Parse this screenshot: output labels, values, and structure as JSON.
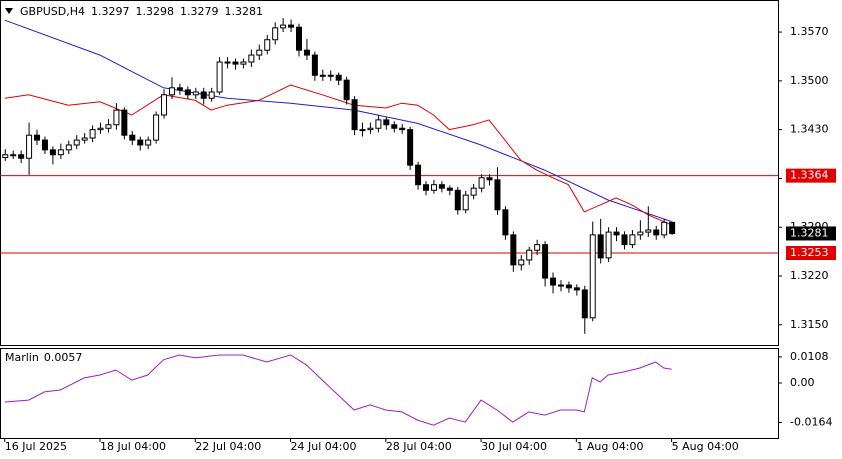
{
  "chart_data": {
    "type": "candlestick",
    "symbol": "GBPUSD,H4",
    "ohlc": [
      [
        1.339,
        1.3402,
        1.3385,
        1.3394
      ],
      [
        1.3394,
        1.34,
        1.3388,
        1.3394
      ],
      [
        1.3394,
        1.34,
        1.3382,
        1.3389
      ],
      [
        1.3389,
        1.344,
        1.3365,
        1.3422
      ],
      [
        1.3422,
        1.343,
        1.3408,
        1.3415
      ],
      [
        1.3415,
        1.342,
        1.3395,
        1.3401
      ],
      [
        1.3401,
        1.3406,
        1.338,
        1.3394
      ],
      [
        1.3394,
        1.341,
        1.3388,
        1.3401
      ],
      [
        1.3401,
        1.3414,
        1.3395,
        1.3408
      ],
      [
        1.3408,
        1.3422,
        1.3402,
        1.3415
      ],
      [
        1.3415,
        1.3425,
        1.341,
        1.3418
      ],
      [
        1.3418,
        1.3436,
        1.3412,
        1.343
      ],
      [
        1.343,
        1.344,
        1.3424,
        1.3432
      ],
      [
        1.3432,
        1.3445,
        1.3426,
        1.3437
      ],
      [
        1.3437,
        1.3468,
        1.343,
        1.3458
      ],
      [
        1.3458,
        1.3462,
        1.3416,
        1.3422
      ],
      [
        1.3422,
        1.3428,
        1.3408,
        1.3415
      ],
      [
        1.3415,
        1.342,
        1.34,
        1.3408
      ],
      [
        1.3408,
        1.342,
        1.3402,
        1.3415
      ],
      [
        1.3415,
        1.3456,
        1.341,
        1.3451
      ],
      [
        1.3451,
        1.3488,
        1.3446,
        1.348
      ],
      [
        1.348,
        1.3505,
        1.3474,
        1.349
      ],
      [
        1.349,
        1.3496,
        1.348,
        1.3487
      ],
      [
        1.3487,
        1.3492,
        1.3474,
        1.348
      ],
      [
        1.348,
        1.349,
        1.3474,
        1.3484
      ],
      [
        1.3484,
        1.349,
        1.3466,
        1.3475
      ],
      [
        1.3475,
        1.349,
        1.347,
        1.3484
      ],
      [
        1.3484,
        1.3534,
        1.348,
        1.3527
      ],
      [
        1.3527,
        1.3534,
        1.3518,
        1.3527
      ],
      [
        1.3527,
        1.3532,
        1.3516,
        1.3524
      ],
      [
        1.3524,
        1.3532,
        1.3518,
        1.3527
      ],
      [
        1.3527,
        1.3545,
        1.352,
        1.3537
      ],
      [
        1.3537,
        1.3552,
        1.353,
        1.3544
      ],
      [
        1.3544,
        1.3566,
        1.3538,
        1.3559
      ],
      [
        1.3559,
        1.3584,
        1.3552,
        1.3576
      ],
      [
        1.3576,
        1.359,
        1.357,
        1.358
      ],
      [
        1.358,
        1.3588,
        1.357,
        1.3577
      ],
      [
        1.3577,
        1.3582,
        1.3535,
        1.3544
      ],
      [
        1.3544,
        1.356,
        1.353,
        1.3537
      ],
      [
        1.3537,
        1.3542,
        1.35,
        1.3508
      ],
      [
        1.3508,
        1.3516,
        1.35,
        1.3508
      ],
      [
        1.3508,
        1.3515,
        1.35,
        1.3508
      ],
      [
        1.3508,
        1.3512,
        1.3494,
        1.3501
      ],
      [
        1.3501,
        1.3506,
        1.3466,
        1.3473
      ],
      [
        1.3473,
        1.3478,
        1.3422,
        1.343
      ],
      [
        1.343,
        1.344,
        1.342,
        1.343
      ],
      [
        1.343,
        1.344,
        1.3424,
        1.3432
      ],
      [
        1.3432,
        1.345,
        1.3426,
        1.3444
      ],
      [
        1.3444,
        1.3448,
        1.343,
        1.3437
      ],
      [
        1.3437,
        1.3442,
        1.3426,
        1.3432
      ],
      [
        1.3432,
        1.3438,
        1.3424,
        1.343
      ],
      [
        1.343,
        1.3434,
        1.3372,
        1.3379
      ],
      [
        1.3379,
        1.3384,
        1.3344,
        1.3351
      ],
      [
        1.3351,
        1.3356,
        1.3336,
        1.3343
      ],
      [
        1.3343,
        1.3358,
        1.3338,
        1.3351
      ],
      [
        1.3351,
        1.3356,
        1.334,
        1.3346
      ],
      [
        1.3346,
        1.335,
        1.3336,
        1.3343
      ],
      [
        1.3343,
        1.3348,
        1.3308,
        1.3315
      ],
      [
        1.3315,
        1.3342,
        1.331,
        1.3336
      ],
      [
        1.3336,
        1.3352,
        1.333,
        1.3346
      ],
      [
        1.3346,
        1.3366,
        1.334,
        1.3361
      ],
      [
        1.3361,
        1.3366,
        1.335,
        1.3358
      ],
      [
        1.3358,
        1.3376,
        1.3308,
        1.3315
      ],
      [
        1.3315,
        1.332,
        1.3272,
        1.3279
      ],
      [
        1.3279,
        1.3284,
        1.3226,
        1.3236
      ],
      [
        1.3236,
        1.325,
        1.3228,
        1.3243
      ],
      [
        1.3243,
        1.3262,
        1.3236,
        1.3257
      ],
      [
        1.3257,
        1.3272,
        1.325,
        1.3265
      ],
      [
        1.3265,
        1.327,
        1.3205,
        1.3217
      ],
      [
        1.3217,
        1.3225,
        1.3195,
        1.3207
      ],
      [
        1.3207,
        1.3214,
        1.3198,
        1.3207
      ],
      [
        1.3207,
        1.3212,
        1.3196,
        1.3203
      ],
      [
        1.3203,
        1.3208,
        1.3192,
        1.32
      ],
      [
        1.32,
        1.3206,
        1.3137,
        1.316
      ],
      [
        1.316,
        1.3298,
        1.3155,
        1.3279
      ],
      [
        1.3279,
        1.3302,
        1.3238,
        1.3246
      ],
      [
        1.3246,
        1.329,
        1.324,
        1.3283
      ],
      [
        1.3283,
        1.329,
        1.327,
        1.3279
      ],
      [
        1.3279,
        1.3284,
        1.3258,
        1.3265
      ],
      [
        1.3265,
        1.3286,
        1.326,
        1.3279
      ],
      [
        1.3279,
        1.33,
        1.3272,
        1.3283
      ],
      [
        1.3283,
        1.332,
        1.3276,
        1.3286
      ],
      [
        1.3286,
        1.3292,
        1.3272,
        1.3279
      ],
      [
        1.3279,
        1.3302,
        1.3274,
        1.3297
      ],
      [
        1.3297,
        1.3298,
        1.3279,
        1.3281
      ]
    ],
    "lines": [
      {
        "color": "#2020d0",
        "x": [
          0,
          12,
          20,
          28,
          36,
          44,
          52,
          60,
          68,
          76,
          84
        ],
        "values": [
          1.3587,
          1.3537,
          1.349,
          1.3475,
          1.3468,
          1.3458,
          1.3439,
          1.3408,
          1.3372,
          1.3329,
          1.3298
        ]
      },
      {
        "color": "#e00000",
        "x": [
          0,
          3,
          8,
          12,
          16,
          20,
          24,
          26,
          28,
          32,
          36,
          40,
          44,
          48,
          50,
          52,
          54,
          56,
          59,
          61,
          63,
          65,
          67,
          69,
          71,
          73,
          75,
          77,
          79,
          81,
          84
        ],
        "values": [
          1.3475,
          1.348,
          1.3465,
          1.347,
          1.3451,
          1.348,
          1.3472,
          1.3458,
          1.3465,
          1.3472,
          1.3494,
          1.348,
          1.3465,
          1.3461,
          1.3468,
          1.3465,
          1.3451,
          1.343,
          1.3437,
          1.3444,
          1.3415,
          1.3386,
          1.3372,
          1.3361,
          1.3351,
          1.3312,
          1.3322,
          1.3332,
          1.3322,
          1.3308,
          1.3293
        ]
      }
    ],
    "levels": [
      1.3364,
      1.3253
    ],
    "level_color": "#e00000",
    "ylim": [
      1.3121,
      1.3616
    ],
    "yticks": [
      {
        "value": 1.357,
        "label": "1.3570"
      },
      {
        "value": 1.35,
        "label": "1.3500"
      },
      {
        "value": 1.343,
        "label": "1.3430"
      },
      {
        "value": 1.336,
        "label": "1.3360"
      },
      {
        "value": 1.329,
        "label": "1.3290"
      },
      {
        "value": 1.322,
        "label": "1.3220"
      },
      {
        "value": 1.315,
        "label": "1.3150"
      }
    ],
    "xlim": [
      -0.6,
      97.4
    ],
    "xticks": [
      {
        "value": 0,
        "label": "16 Jul 2025"
      },
      {
        "value": 12,
        "label": "18 Jul 04:00"
      },
      {
        "value": 24,
        "label": "22 Jul 04:00"
      },
      {
        "value": 36,
        "label": "24 Jul 04:00"
      },
      {
        "value": 48,
        "label": "28 Jul 04:00"
      },
      {
        "value": 60,
        "label": "30 Jul 04:00"
      },
      {
        "value": 72,
        "label": "1 Aug 04:00"
      },
      {
        "value": 84,
        "label": "5 Aug 04:00"
      }
    ],
    "indicator": {
      "name": "Marlin",
      "color": "#a020c0",
      "x": [
        0,
        3,
        5,
        7,
        10,
        12,
        14,
        16,
        18,
        20,
        22,
        24,
        27,
        30,
        33,
        36,
        38,
        40,
        42,
        44,
        46,
        48,
        50,
        52,
        54,
        56,
        58,
        60,
        62,
        64,
        66,
        68,
        70,
        72,
        73,
        74,
        75,
        76,
        78,
        80,
        82,
        83,
        84
      ],
      "values": [
        -0.0079,
        -0.0071,
        -0.0037,
        -0.0029,
        0.0021,
        0.0033,
        0.0054,
        0.0012,
        0.0033,
        0.0096,
        0.0116,
        0.0104,
        0.0116,
        0.0116,
        0.0087,
        0.0116,
        0.0075,
        0.0012,
        -0.005,
        -0.0112,
        -0.0091,
        -0.0112,
        -0.012,
        -0.0154,
        -0.0175,
        -0.0145,
        -0.0162,
        -0.0071,
        -0.0112,
        -0.0162,
        -0.012,
        -0.0133,
        -0.0112,
        -0.0112,
        -0.012,
        0.0021,
        0.0004,
        0.0033,
        0.0046,
        0.0062,
        0.0087,
        0.0062,
        0.0057
      ],
      "ylim": [
        -0.0228,
        0.0145
      ],
      "yticks": [
        0.0108,
        {
          "value": 0,
          "label": "0.00"
        },
        -0.0164
      ]
    }
  }
}
